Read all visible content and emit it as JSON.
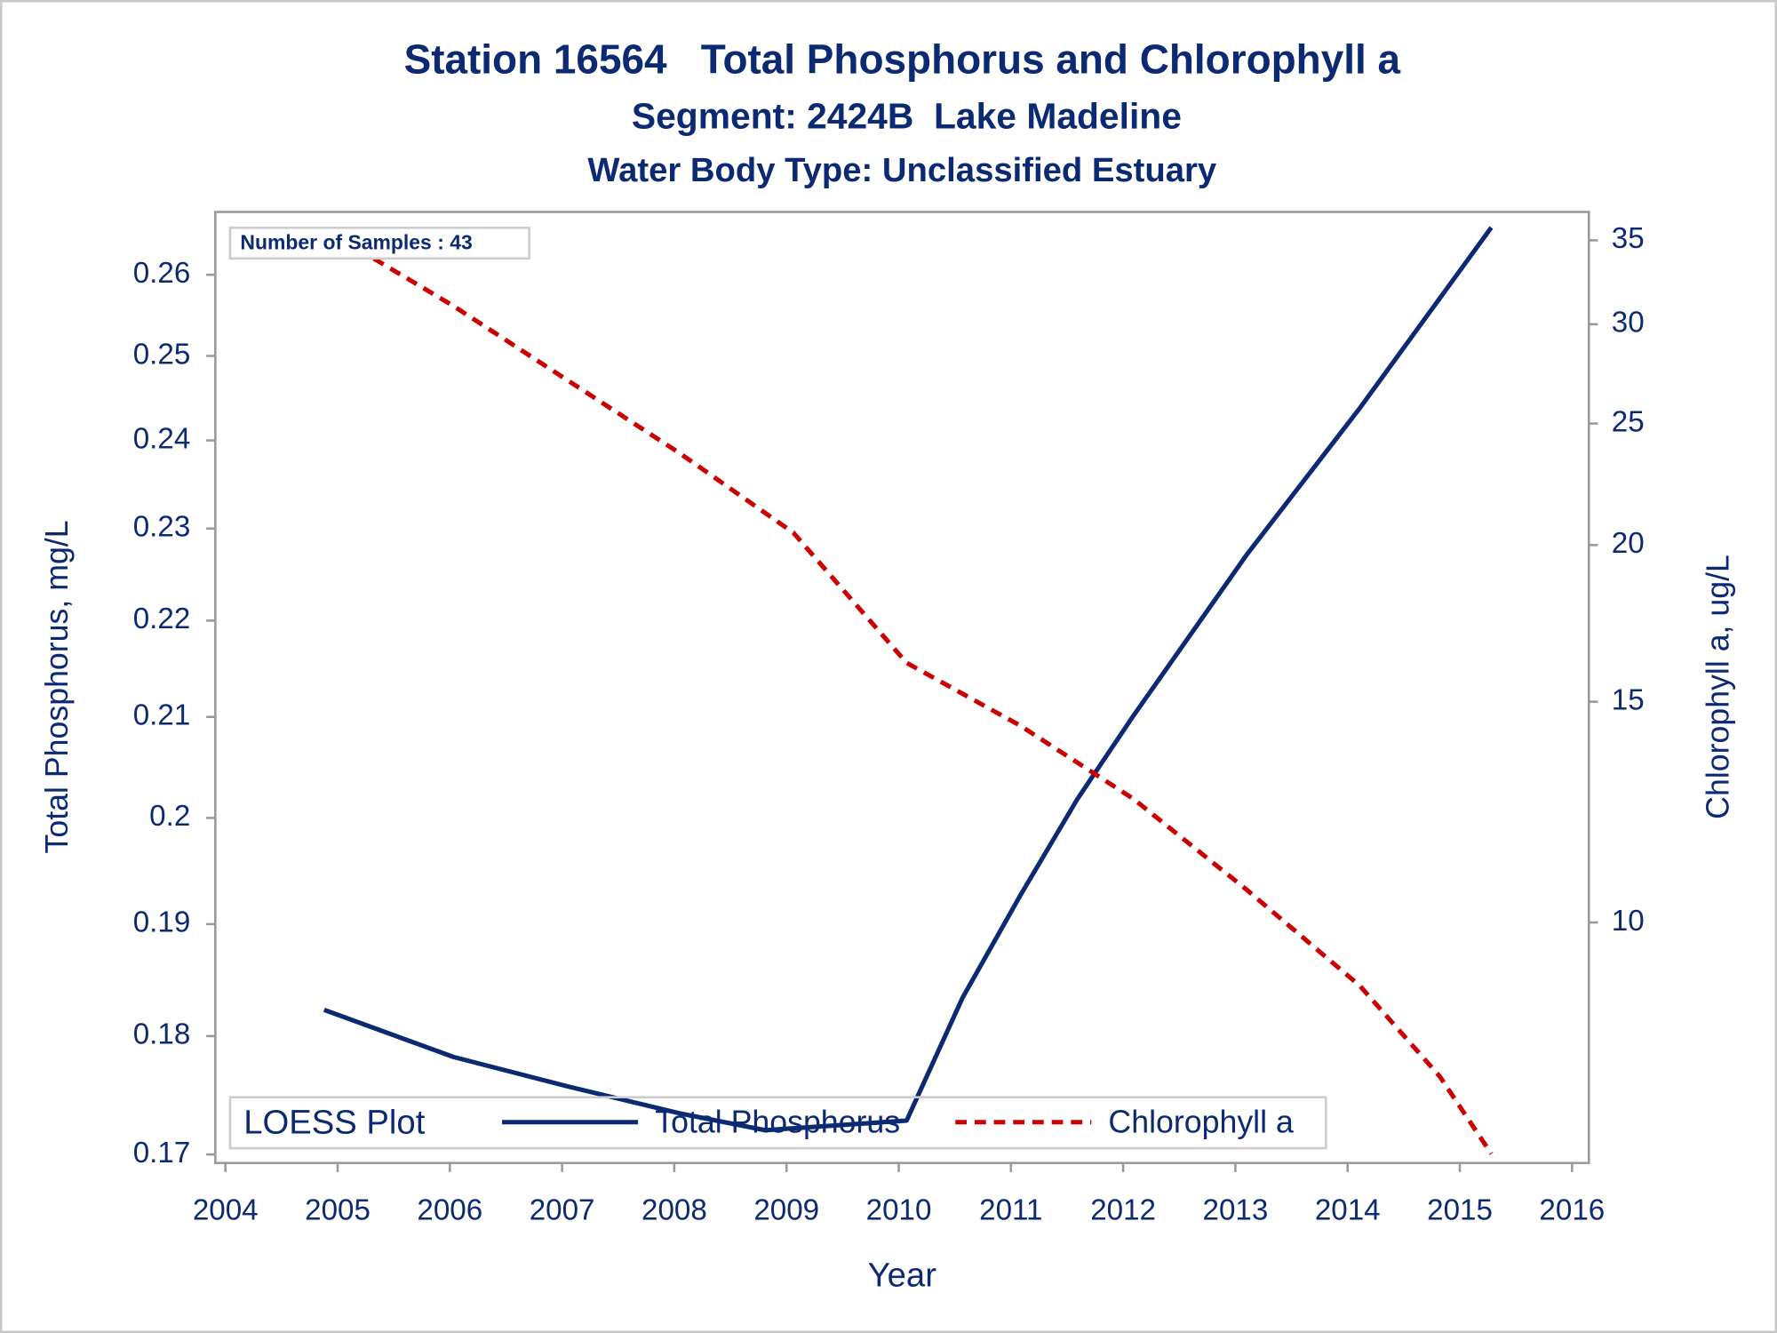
{
  "chart_data": {
    "type": "line",
    "title": "Station 16564   Total Phosphorus and Chlorophyll a",
    "subtitle": "Segment: 2424B  Lake Madeline",
    "subtitle2": "Water Body Type: Unclassified Estuary",
    "annotation": "Number of Samples : 43",
    "xlabel": "Year",
    "ylabel": "Total Phosphorus, mg/L",
    "y2label": "Chlorophyll a, ug/L",
    "legend_title": "LOESS Plot",
    "legend": "bottom-left",
    "xlim": [
      2003.91,
      2016.15
    ],
    "xticks": [
      2004,
      2005,
      2006,
      2007,
      2008,
      2009,
      2010,
      2011,
      2012,
      2013,
      2014,
      2015,
      2016
    ],
    "ylim": [
      0.1693,
      0.268
    ],
    "yticks": [
      0.17,
      0.18,
      0.19,
      0.2,
      0.21,
      0.22,
      0.23,
      0.24,
      0.25,
      0.26
    ],
    "ylog": true,
    "y2lim": [
      6.43,
      36.87
    ],
    "y2ticks": [
      10,
      15,
      20,
      25,
      30,
      35
    ],
    "y2log": true,
    "series": [
      {
        "name": "Total Phosphorus",
        "color": "#0b2a73",
        "dash": false,
        "x": [
          2004.88,
          2006.03,
          2007.04,
          2008.05,
          2008.81,
          2010.07,
          2010.57,
          2011.08,
          2011.59,
          2012.09,
          2013.1,
          2014.11,
          2015.28
        ],
        "values": [
          0.1823,
          0.1782,
          0.1757,
          0.1734,
          0.172,
          0.1728,
          0.1834,
          0.1926,
          0.2018,
          0.2101,
          0.2271,
          0.2438,
          0.266
        ]
      },
      {
        "name": "Chlorophyll a",
        "color": "#cc0000",
        "dash": true,
        "axis": "y2",
        "x": [
          2004.88,
          2006.03,
          2007.04,
          2008.05,
          2009.06,
          2010.07,
          2011.08,
          2012.09,
          2013.1,
          2014.11,
          2014.82,
          2015.28
        ],
        "values": [
          35.74,
          31.03,
          27.1,
          23.67,
          20.46,
          16.11,
          14.36,
          12.55,
          10.62,
          8.9,
          7.54,
          6.54
        ]
      }
    ]
  }
}
